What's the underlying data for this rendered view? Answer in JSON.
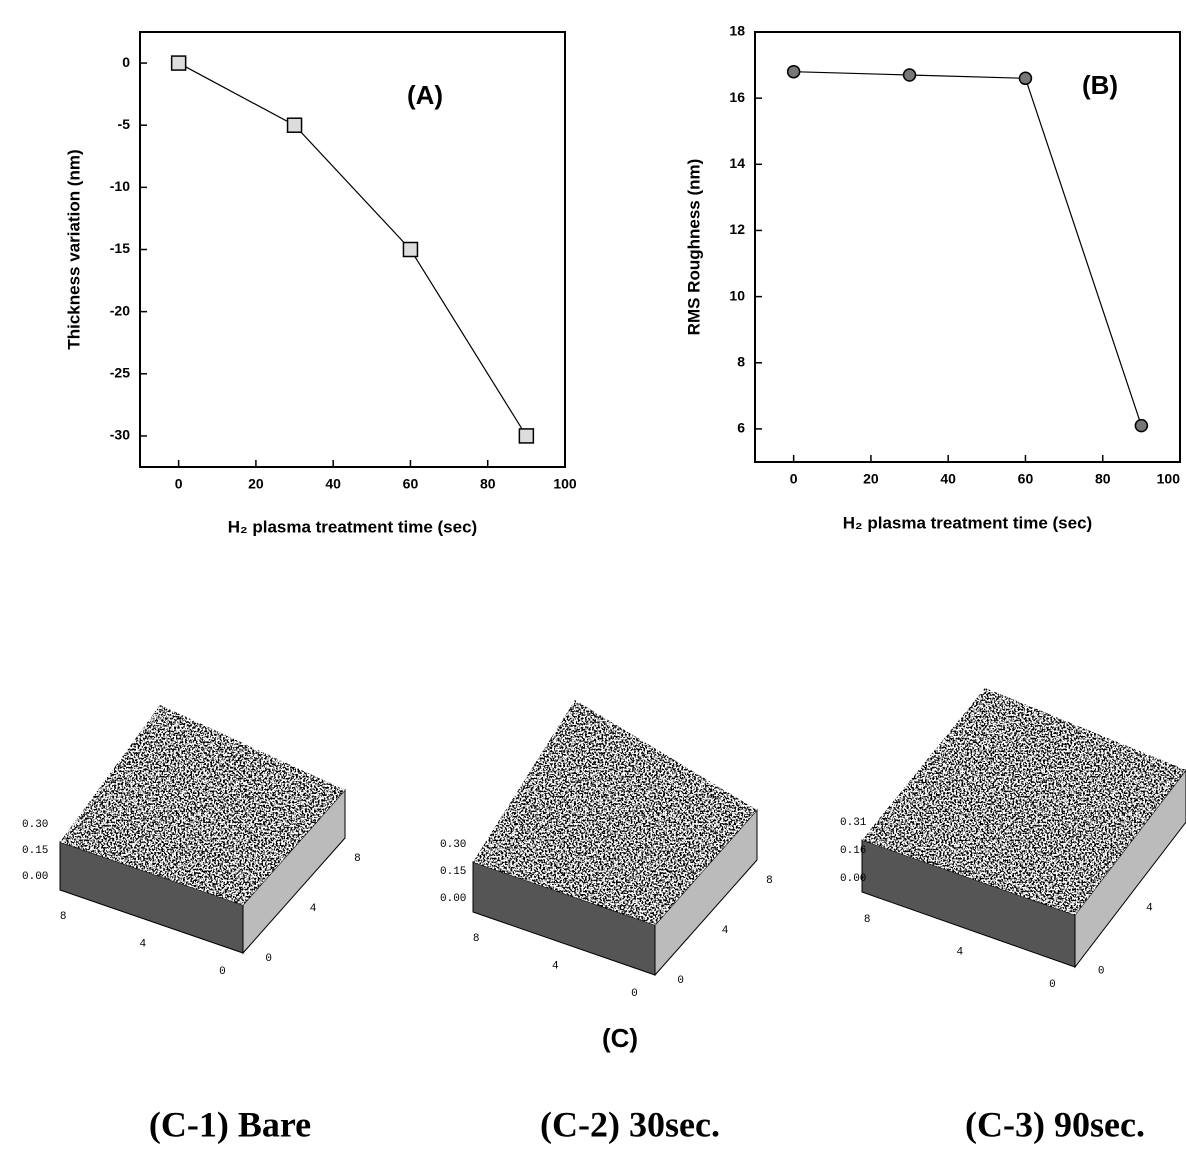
{
  "chart_data": [
    {
      "type": "line",
      "annotation": "(A)",
      "x_label": "H₂ plasma treatment time (sec)",
      "y_label": "Thickness variation  (nm)",
      "x": [
        0,
        30,
        60,
        90
      ],
      "series": [
        {
          "color": "#000000",
          "marker": "square",
          "values": [
            0,
            -5,
            -15,
            -30
          ]
        }
      ],
      "xlim": [
        -10,
        100
      ],
      "xticks": [
        0,
        20,
        40,
        60,
        80,
        100
      ],
      "ylim": [
        -32.5,
        2.5
      ],
      "yticks": [
        0,
        -5,
        -10,
        -15,
        -20,
        -25,
        -30
      ]
    },
    {
      "type": "line",
      "annotation": "(B)",
      "x_label": "H₂ plasma treatment time (sec)",
      "y_label": "RMS Roughness (nm)",
      "x": [
        0,
        30,
        60,
        90
      ],
      "series": [
        {
          "color": "#000000",
          "marker": "circle",
          "values": [
            16.8,
            16.7,
            16.6,
            6.1
          ]
        }
      ],
      "xlim": [
        -10,
        100
      ],
      "xticks": [
        0,
        20,
        40,
        60,
        80,
        100
      ],
      "ylim": [
        5,
        18
      ],
      "yticks": [
        6,
        8,
        10,
        12,
        14,
        16,
        18
      ]
    }
  ],
  "afm": {
    "label": "(C)",
    "panels": [
      {
        "caption": "(C-1) Bare",
        "z_labels": [
          "0.30",
          "0.15",
          "0.00"
        ],
        "front_labels": [
          "8",
          "4",
          "0"
        ],
        "side_labels": [
          "0",
          "4",
          "8"
        ]
      },
      {
        "caption": "(C-2) 30sec.",
        "z_labels": [
          "0.30",
          "0.15",
          "0.00"
        ],
        "front_labels": [
          "8",
          "4",
          "0"
        ],
        "side_labels": [
          "0",
          "4",
          "8"
        ]
      },
      {
        "caption": "(C-3) 90sec.",
        "z_labels": [
          "0.31",
          "0.16",
          "0.00"
        ],
        "front_labels": [
          "8",
          "4",
          "0"
        ],
        "side_labels": [
          "0",
          "4"
        ]
      }
    ]
  }
}
